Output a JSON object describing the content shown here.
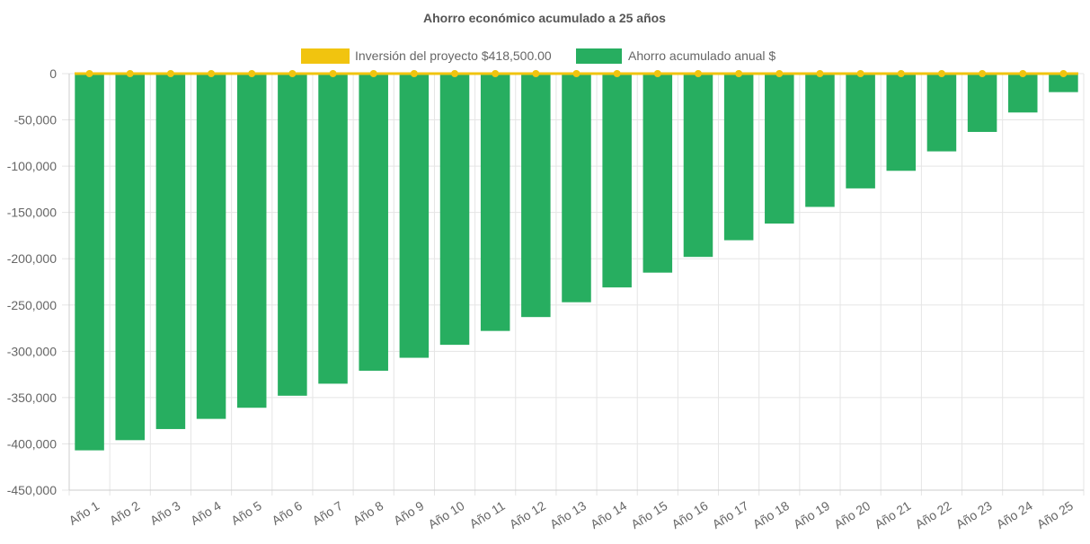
{
  "chart_data": {
    "type": "bar",
    "title": "Ahorro económico acumulado a 25 años",
    "categories": [
      "Año 1",
      "Año 2",
      "Año 3",
      "Año 4",
      "Año 5",
      "Año 6",
      "Año 7",
      "Año 8",
      "Año 9",
      "Año 10",
      "Año 11",
      "Año 12",
      "Año 13",
      "Año 14",
      "Año 15",
      "Año 16",
      "Año 17",
      "Año 18",
      "Año 19",
      "Año 20",
      "Año 21",
      "Año 22",
      "Año 23",
      "Año 24",
      "Año 25"
    ],
    "ylim": [
      -450000,
      0
    ],
    "yticks": [
      0,
      -50000,
      -100000,
      -150000,
      -200000,
      -250000,
      -300000,
      -350000,
      -400000,
      -450000
    ],
    "ytick_labels": [
      "0",
      "-50,000",
      "-100,000",
      "-150,000",
      "-200,000",
      "-250,000",
      "-300,000",
      "-350,000",
      "-400,000",
      "-450,000"
    ],
    "grid": true,
    "legend_position": "top-center",
    "series": [
      {
        "name": "Inversión del proyecto $418,500.00",
        "kind": "line",
        "color": "#f1c40f",
        "values": [
          0,
          0,
          0,
          0,
          0,
          0,
          0,
          0,
          0,
          0,
          0,
          0,
          0,
          0,
          0,
          0,
          0,
          0,
          0,
          0,
          0,
          0,
          0,
          0,
          0
        ]
      },
      {
        "name": "Ahorro acumulado anual $",
        "kind": "bar",
        "color": "#27ae60",
        "values": [
          -407000,
          -396000,
          -384000,
          -373000,
          -361000,
          -348000,
          -335000,
          -321000,
          -307000,
          -293000,
          -278000,
          -263000,
          -247000,
          -231000,
          -215000,
          -198000,
          -180000,
          -162000,
          -144000,
          -124000,
          -105000,
          -84000,
          -63000,
          -42000,
          -20000
        ]
      }
    ]
  }
}
